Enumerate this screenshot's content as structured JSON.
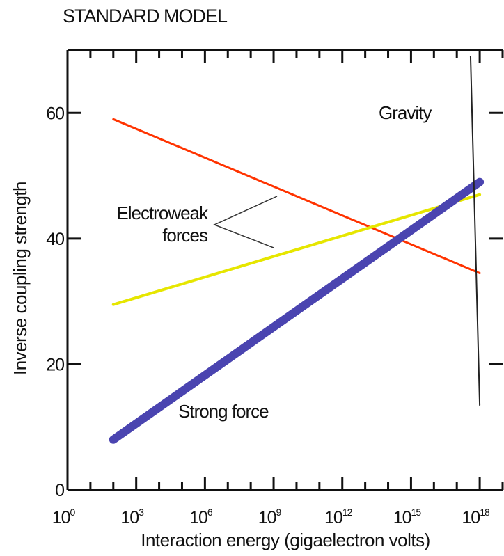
{
  "chart_data": {
    "type": "line",
    "title": "STANDARD MODEL",
    "xlabel": "Interaction energy (gigaelectron volts)",
    "ylabel": "Inverse coupling strength",
    "xscale": "log",
    "x_ticks": [
      {
        "base": "10",
        "exp": "0"
      },
      {
        "base": "10",
        "exp": "3"
      },
      {
        "base": "10",
        "exp": "6"
      },
      {
        "base": "10",
        "exp": "9"
      },
      {
        "base": "10",
        "exp": "12"
      },
      {
        "base": "10",
        "exp": "15"
      },
      {
        "base": "10",
        "exp": "18"
      }
    ],
    "y_ticks": [
      "0",
      "20",
      "40",
      "60"
    ],
    "xlim_log10": [
      0,
      19
    ],
    "ylim": [
      0,
      70
    ],
    "grid": false,
    "series": [
      {
        "id": "weak-red",
        "color": "#ff3300",
        "width": 3,
        "points": [
          [
            2,
            59
          ],
          [
            18,
            34.5
          ]
        ]
      },
      {
        "id": "weak-yellow",
        "color": "#e6e600",
        "width": 4,
        "points": [
          [
            2,
            29.5
          ],
          [
            18,
            47
          ]
        ]
      },
      {
        "id": "strong",
        "color": "#4a44b0",
        "width": 12,
        "points": [
          [
            2,
            8
          ],
          [
            18,
            49
          ]
        ]
      },
      {
        "id": "gravity",
        "color": "#222222",
        "width": 2,
        "points": [
          [
            17.6,
            69
          ],
          [
            18,
            13.5
          ]
        ]
      }
    ],
    "annotations": {
      "electroweak_line1": "Electroweak",
      "electroweak_line2": "forces",
      "strong": "Strong force",
      "gravity": "Gravity"
    }
  }
}
